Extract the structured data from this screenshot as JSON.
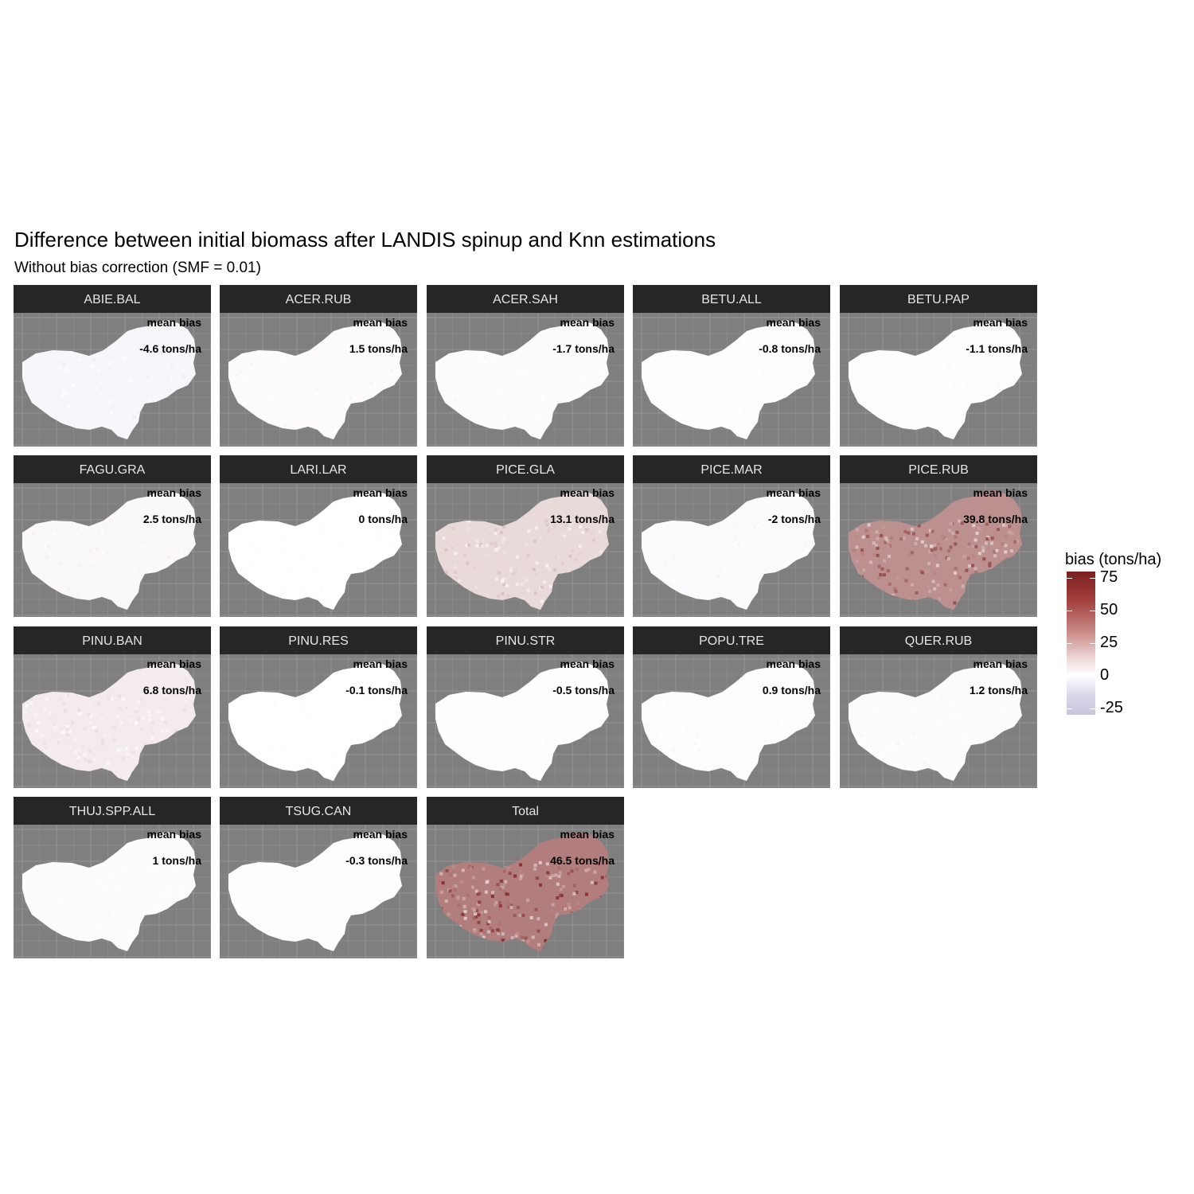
{
  "title": "Difference between initial biomass after LANDIS spinup and Knn estimations",
  "subtitle": "Without bias correction (SMF = 0.01)",
  "chart_data": {
    "type": "heatmap",
    "title": "Difference between initial biomass after LANDIS spinup and Knn estimations",
    "subtitle": "Without bias correction (SMF = 0.01)",
    "annotation_label": "mean bias",
    "panels": [
      {
        "name": "ABIE.BAL",
        "mean_bias": "-4.6 tons/ha",
        "value": -4.6
      },
      {
        "name": "ACER.RUB",
        "mean_bias": "1.5 tons/ha",
        "value": 1.5
      },
      {
        "name": "ACER.SAH",
        "mean_bias": "-1.7 tons/ha",
        "value": -1.7
      },
      {
        "name": "BETU.ALL",
        "mean_bias": "-0.8 tons/ha",
        "value": -0.8
      },
      {
        "name": "BETU.PAP",
        "mean_bias": "-1.1 tons/ha",
        "value": -1.1
      },
      {
        "name": "FAGU.GRA",
        "mean_bias": "2.5 tons/ha",
        "value": 2.5
      },
      {
        "name": "LARI.LAR",
        "mean_bias": "0 tons/ha",
        "value": 0
      },
      {
        "name": "PICE.GLA",
        "mean_bias": "13.1 tons/ha",
        "value": 13.1
      },
      {
        "name": "PICE.MAR",
        "mean_bias": "-2 tons/ha",
        "value": -2
      },
      {
        "name": "PICE.RUB",
        "mean_bias": "39.8 tons/ha",
        "value": 39.8
      },
      {
        "name": "PINU.BAN",
        "mean_bias": "6.8 tons/ha",
        "value": 6.8
      },
      {
        "name": "PINU.RES",
        "mean_bias": "-0.1 tons/ha",
        "value": -0.1
      },
      {
        "name": "PINU.STR",
        "mean_bias": "-0.5 tons/ha",
        "value": -0.5
      },
      {
        "name": "POPU.TRE",
        "mean_bias": "0.9 tons/ha",
        "value": 0.9
      },
      {
        "name": "QUER.RUB",
        "mean_bias": "1.2 tons/ha",
        "value": 1.2
      },
      {
        "name": "THUJ.SPP.ALL",
        "mean_bias": "1 tons/ha",
        "value": 1
      },
      {
        "name": "TSUG.CAN",
        "mean_bias": "-0.3 tons/ha",
        "value": -0.3
      },
      {
        "name": "Total",
        "mean_bias": "46.5 tons/ha",
        "value": 46.5
      }
    ],
    "legend": {
      "title": "bias (tons/ha)",
      "ticks": [
        75,
        50,
        25,
        0,
        -25
      ],
      "tick_labels": [
        "75",
        "50",
        "25",
        "0",
        "-25"
      ],
      "range": [
        -30,
        80
      ],
      "low_color": "#c9c3df",
      "mid_color": "#ffffff",
      "high_color": "#7a1f1f",
      "placement": "right"
    },
    "panel_background": "#7f7f7f",
    "strip_color": "#262626",
    "grid": true
  }
}
